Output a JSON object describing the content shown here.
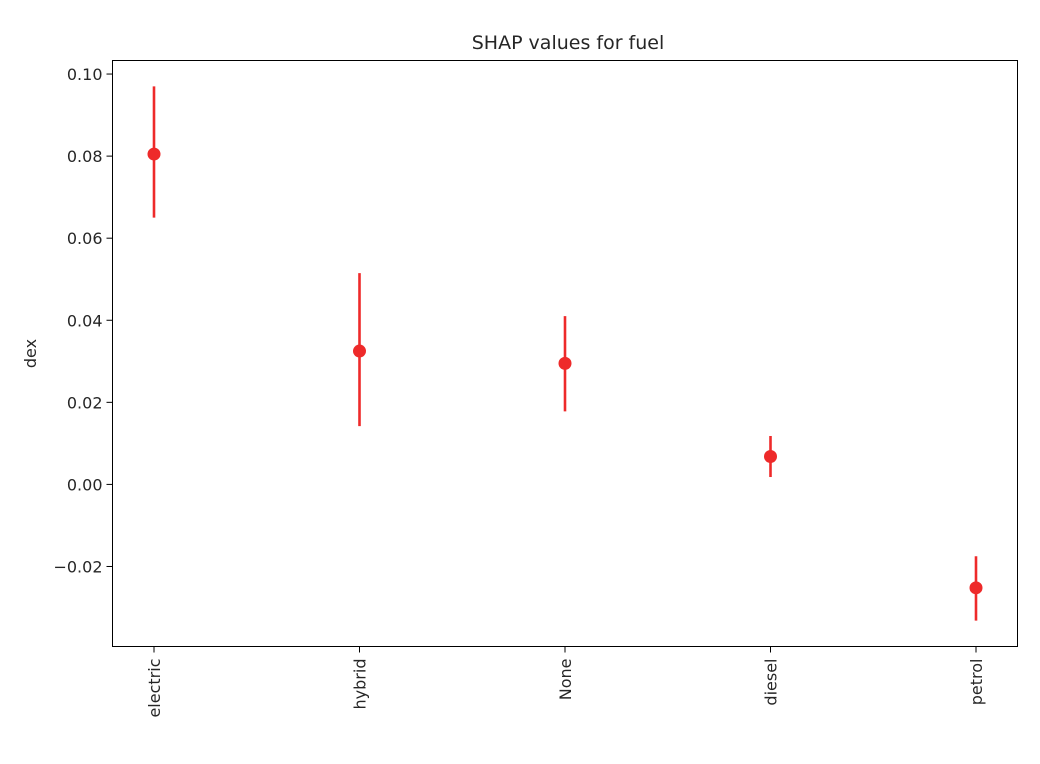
{
  "chart_data": {
    "type": "scatter",
    "title": "SHAP values for fuel",
    "xlabel": "",
    "ylabel": "dex",
    "categories": [
      "electric",
      "hybrid",
      "None",
      "diesel",
      "petrol"
    ],
    "series": [
      {
        "values": [
          0.0805,
          0.0325,
          0.0295,
          0.0068,
          -0.0252
        ],
        "error_low": [
          0.065,
          0.0142,
          0.0178,
          0.0018,
          -0.0332
        ],
        "error_high": [
          0.097,
          0.0515,
          0.041,
          0.0118,
          -0.0175
        ]
      }
    ],
    "ylim": [
      -0.0395,
      0.1033
    ],
    "yticks": [
      -0.02,
      0.0,
      0.02,
      0.04,
      0.06,
      0.08,
      0.1
    ],
    "ytick_labels": [
      "−0.02",
      "0.00",
      "0.02",
      "0.04",
      "0.06",
      "0.08",
      "0.10"
    ],
    "color": "#ee2a2a",
    "grid": false,
    "legend": "none"
  }
}
